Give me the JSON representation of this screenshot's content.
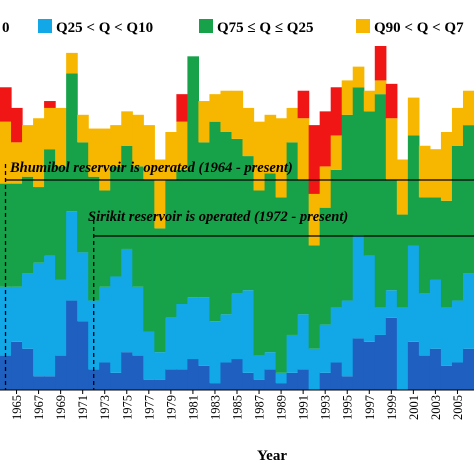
{
  "chart_data": {
    "type": "bar",
    "stacked": true,
    "xlabel": "Year",
    "ylabel": "",
    "ylim": [
      0,
      100
    ],
    "years": [
      1964,
      1965,
      1966,
      1967,
      1968,
      1969,
      1970,
      1971,
      1972,
      1973,
      1974,
      1975,
      1976,
      1977,
      1978,
      1979,
      1980,
      1981,
      1982,
      1983,
      1984,
      1985,
      1986,
      1987,
      1988,
      1989,
      1990,
      1991,
      1992,
      1993,
      1994,
      1995,
      1996,
      1997,
      1998,
      1999,
      2000,
      2001,
      2002,
      2003,
      2004,
      2005,
      2006
    ],
    "tick_labels": [
      "1965",
      "1967",
      "1969",
      "1971",
      "1973",
      "1975",
      "1977",
      "1979",
      "1981",
      "1983",
      "1985",
      "1987",
      "1989",
      "1991",
      "1993",
      "1995",
      "1997",
      "1999",
      "2001",
      "2003",
      "2005"
    ],
    "legend": [
      "0",
      "Q25 < Q < Q10",
      "Q75 ≤ Q ≤ Q25",
      "Q90 < Q < Q7"
    ],
    "colors": {
      "q_low": "#1f5fbf",
      "q25_q10": "#12a8e8",
      "q75_q25": "#17a24a",
      "q90_q75": "#f7b600",
      "q_high": "#f01616"
    },
    "series": [
      {
        "name": "",
        "color_key": "q_low",
        "values": [
          10,
          14,
          12,
          4,
          4,
          10,
          26,
          20,
          6,
          8,
          5,
          11,
          10,
          3,
          3,
          6,
          6,
          9,
          7,
          2,
          8,
          9,
          5,
          3,
          6,
          2,
          5,
          6,
          0,
          5,
          8,
          4,
          15,
          14,
          16,
          21,
          0,
          14,
          10,
          12,
          7,
          8,
          12
        ]
      },
      {
        "name": "Q25 < Q < Q10",
        "color_key": "q25_q10",
        "values": [
          20,
          16,
          22,
          33,
          35,
          22,
          26,
          20,
          20,
          22,
          28,
          30,
          20,
          14,
          8,
          15,
          19,
          18,
          20,
          18,
          14,
          19,
          24,
          7,
          5,
          3,
          11,
          16,
          12,
          14,
          16,
          22,
          30,
          25,
          8,
          8,
          24,
          28,
          18,
          20,
          17,
          18,
          22
        ]
      },
      {
        "name": "Q75 ≤ Q ≤ Q25",
        "color_key": "q75_q25",
        "values": [
          30,
          30,
          28,
          22,
          31,
          33,
          40,
          32,
          36,
          28,
          32,
          30,
          35,
          44,
          36,
          40,
          39,
          70,
          45,
          58,
          53,
          45,
          39,
          48,
          52,
          51,
          56,
          39,
          30,
          34,
          40,
          54,
          43,
          42,
          62,
          32,
          27,
          32,
          28,
          24,
          31,
          45,
          43
        ]
      },
      {
        "name": "Q90 < Q < Q7",
        "color_key": "q90_q75",
        "values": [
          18,
          12,
          15,
          20,
          12,
          17,
          6,
          8,
          14,
          18,
          12,
          10,
          15,
          16,
          20,
          14,
          14,
          0,
          12,
          8,
          12,
          14,
          14,
          20,
          17,
          23,
          10,
          18,
          15,
          12,
          10,
          10,
          6,
          6,
          4,
          18,
          16,
          11,
          15,
          14,
          20,
          11,
          10
        ]
      },
      {
        "name": "",
        "color_key": "q_high",
        "values": [
          10,
          10,
          0,
          0,
          2,
          0,
          0,
          0,
          0,
          0,
          0,
          0,
          0,
          0,
          0,
          0,
          8,
          0,
          0,
          0,
          0,
          0,
          0,
          0,
          0,
          0,
          0,
          8,
          20,
          16,
          14,
          0,
          0,
          0,
          10,
          10,
          0,
          0,
          0,
          0,
          0,
          0,
          0
        ]
      }
    ],
    "annotations": [
      {
        "text": "Bhumibol reservoir is operated (1964 - present)",
        "start_year": 1964
      },
      {
        "text": "Sirikit reservoir is operated (1972 - present)",
        "start_year": 1972
      }
    ]
  }
}
